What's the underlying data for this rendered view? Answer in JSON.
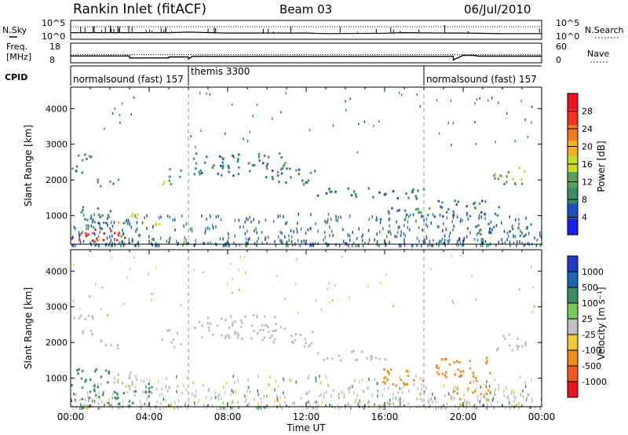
{
  "header": {
    "title": "Rankin Inlet (fitACF)",
    "beam": "Beam 03",
    "date": "06/Jul/2010"
  },
  "nsky_panel": {
    "left_label": "N.Sky",
    "left_ticks": [
      "10^5",
      "10^0"
    ],
    "right_ticks": [
      "10^5",
      "10^0"
    ],
    "right_label": "N.Search",
    "right_label_style": "dotted"
  },
  "freq_panel": {
    "left_label_1": "Freq.",
    "left_label_2": "[MHz]",
    "left_ticks": [
      "18",
      "8"
    ],
    "right_ticks": [
      "60",
      "0"
    ],
    "right_label": "Nave",
    "right_label_style": "dotted"
  },
  "cpid_panel": {
    "label": "CPID",
    "segments": [
      {
        "text": "normalsound (fast) 157",
        "start_h": 0,
        "end_h": 6
      },
      {
        "text": "themis 3300",
        "start_h": 6,
        "end_h": 18
      },
      {
        "text": "normalsound (fast) 157",
        "start_h": 18,
        "end_h": 24
      }
    ]
  },
  "power_panel": {
    "ylabel": "Slant Range [km]",
    "y_ticks": [
      "4000",
      "3000",
      "2000",
      "1000"
    ],
    "colorbar_label": "Power [dB]",
    "colorbar_ticks": [
      "28",
      "24",
      "20",
      "16",
      "12",
      "8",
      "4"
    ],
    "colorbar_colors": [
      "#e8141e",
      "#f5321e",
      "#f0781e",
      "#f0b41e",
      "#c8dc28",
      "#5aa05a",
      "#3c8c64",
      "#1e50c8",
      "#1e1ee6"
    ]
  },
  "velocity_panel": {
    "ylabel": "Slant Range [km]",
    "y_ticks": [
      "4000",
      "3000",
      "2000",
      "1000"
    ],
    "colorbar_label": "Velocity [m s⁻¹]",
    "colorbar_ticks": [
      "1000",
      "500",
      "100",
      "25",
      "-25",
      "-100",
      "-500",
      "-1000"
    ],
    "colorbar_colors": [
      "#1e3cc8",
      "#1e64b4",
      "#3c8c64",
      "#78c85a",
      "#c0c0c0",
      "#f0c83c",
      "#f08c1e",
      "#f05a1e",
      "#e8141e"
    ],
    "ground_scatter_color": "#bebebe"
  },
  "time_axis": {
    "tick_labels": [
      "00:00",
      "04:00",
      "08:00",
      "12:00",
      "16:00",
      "20:00",
      "00:00"
    ],
    "xlabel": "Time UT"
  },
  "chart_data": {
    "type": "heatmap",
    "x_unit": "hours UT",
    "xlim": [
      0,
      24
    ],
    "ylim": [
      200,
      4600
    ],
    "y_unit": "km",
    "cpid_changes_h": [
      6,
      18
    ],
    "nsky_trace": [
      [
        0,
        0.35
      ],
      [
        1,
        0.35
      ],
      [
        2,
        0.35
      ],
      [
        3,
        0.35
      ],
      [
        4,
        0.35
      ],
      [
        5,
        0.35
      ],
      [
        6,
        0.38
      ],
      [
        8,
        0.33
      ],
      [
        12,
        0.33
      ],
      [
        13,
        0.3
      ],
      [
        16,
        0.32
      ],
      [
        17,
        0.35
      ],
      [
        19,
        0.33
      ],
      [
        20,
        0.33
      ],
      [
        22,
        0.3
      ],
      [
        24,
        0.3
      ]
    ],
    "freq_trace_mhz": [
      [
        0,
        11.5
      ],
      [
        3,
        11.5
      ],
      [
        3,
        10.5
      ],
      [
        5,
        10.5
      ],
      [
        5,
        11
      ],
      [
        6,
        11
      ],
      [
        6,
        10
      ],
      [
        6.2,
        11.3
      ],
      [
        19.5,
        11.3
      ],
      [
        19.5,
        9.5
      ],
      [
        20,
        11.8
      ],
      [
        20.5,
        11.8
      ],
      [
        20.8,
        11.4
      ],
      [
        24,
        11.4
      ]
    ],
    "nave_level": 25,
    "power_blobs": [
      {
        "t0": 0.0,
        "t1": 3.4,
        "r0": 300,
        "r1": 650,
        "power_db": 28
      },
      {
        "t0": 0.0,
        "t1": 2.0,
        "r0": 650,
        "r1": 1300,
        "power_db": 8
      },
      {
        "t0": 0.0,
        "t1": 1.1,
        "r0": 2200,
        "r1": 2800,
        "power_db": 10
      },
      {
        "t0": 1.2,
        "t1": 2.4,
        "r0": 1800,
        "r1": 2100,
        "power_db": 12
      },
      {
        "t0": 2.4,
        "t1": 3.4,
        "r0": 800,
        "r1": 1200,
        "power_db": 16
      },
      {
        "t0": 3.5,
        "t1": 4.5,
        "r0": 600,
        "r1": 900,
        "power_db": 16
      },
      {
        "t0": 4.6,
        "t1": 5.6,
        "r0": 1900,
        "r1": 2400,
        "power_db": 12
      },
      {
        "t0": 6.2,
        "t1": 11.0,
        "r0": 2100,
        "r1": 2800,
        "power_db": 8
      },
      {
        "t0": 10.2,
        "t1": 12.4,
        "r0": 1900,
        "r1": 2400,
        "power_db": 8
      },
      {
        "t0": 12.5,
        "t1": 18.0,
        "r0": 1500,
        "r1": 1800,
        "power_db": 6
      },
      {
        "t0": 15.5,
        "t1": 18.5,
        "r0": 900,
        "r1": 1300,
        "power_db": 8
      },
      {
        "t0": 18.5,
        "t1": 22.0,
        "r0": 1000,
        "r1": 1500,
        "power_db": 8
      },
      {
        "t0": 21.5,
        "t1": 23.2,
        "r0": 1800,
        "r1": 2400,
        "power_db": 12
      },
      {
        "t0": 20.5,
        "t1": 23.5,
        "r0": 450,
        "r1": 800,
        "power_db": 8
      }
    ],
    "velocity_blobs": [
      {
        "t0": 0.0,
        "t1": 3.4,
        "r0": 300,
        "r1": 700,
        "velocity": 150
      },
      {
        "t0": 0.0,
        "t1": 2.0,
        "r0": 700,
        "r1": 1300,
        "velocity": 150
      },
      {
        "t0": 0.0,
        "t1": 1.1,
        "r0": 2200,
        "r1": 2800,
        "velocity": 0,
        "ground": true
      },
      {
        "t0": 1.2,
        "t1": 2.4,
        "r0": 1800,
        "r1": 2100,
        "velocity": 0,
        "ground": true
      },
      {
        "t0": 2.2,
        "t1": 3.4,
        "r0": 700,
        "r1": 1200,
        "velocity": 0,
        "ground": true
      },
      {
        "t0": 3.5,
        "t1": 4.6,
        "r0": 600,
        "r1": 900,
        "velocity": 120
      },
      {
        "t0": 4.6,
        "t1": 5.6,
        "r0": 1900,
        "r1": 2400,
        "velocity": 0,
        "ground": true
      },
      {
        "t0": 6.2,
        "t1": 11.0,
        "r0": 2100,
        "r1": 2800,
        "velocity": 0,
        "ground": true
      },
      {
        "t0": 10.2,
        "t1": 12.4,
        "r0": 1900,
        "r1": 2400,
        "velocity": 0,
        "ground": true
      },
      {
        "t0": 12.5,
        "t1": 16.0,
        "r0": 1500,
        "r1": 1800,
        "velocity": 0,
        "ground": true
      },
      {
        "t0": 15.5,
        "t1": 18.2,
        "r0": 800,
        "r1": 1300,
        "velocity": -300
      },
      {
        "t0": 18.5,
        "t1": 21.5,
        "r0": 900,
        "r1": 1600,
        "velocity": -300
      },
      {
        "t0": 19.5,
        "t1": 21.5,
        "r0": 400,
        "r1": 800,
        "velocity": -400
      },
      {
        "t0": 21.5,
        "t1": 23.2,
        "r0": 1800,
        "r1": 2300,
        "velocity": 0,
        "ground": true
      }
    ]
  }
}
